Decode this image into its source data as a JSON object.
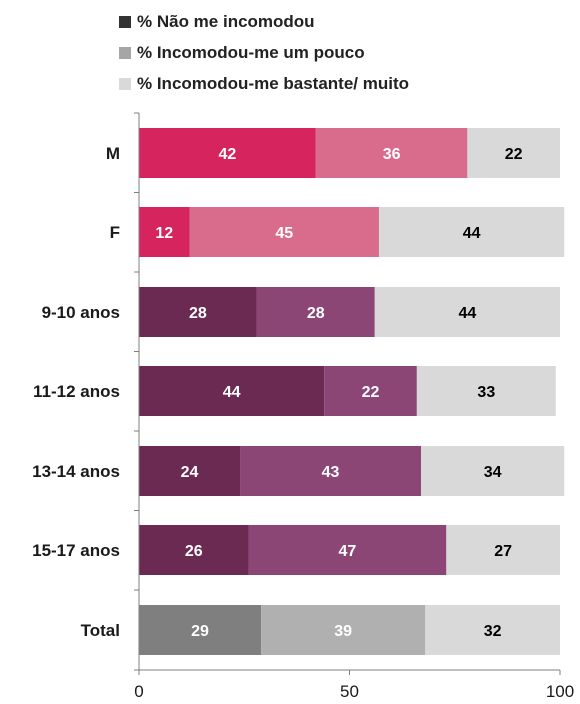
{
  "chart_data": {
    "type": "bar",
    "orientation": "horizontal",
    "stacked": true,
    "categories": [
      "M",
      "F",
      "9-10 anos",
      "11-12 anos",
      "13-14 anos",
      "15-17 anos",
      "Total"
    ],
    "series": [
      {
        "name": "% Não me incomodou",
        "values": [
          42,
          12,
          28,
          44,
          24,
          26,
          29
        ]
      },
      {
        "name": "% Incomodou-me um pouco",
        "values": [
          36,
          45,
          28,
          22,
          43,
          47,
          39
        ]
      },
      {
        "name": "% Incomodou-me bastante/ muito",
        "values": [
          22,
          44,
          44,
          33,
          34,
          27,
          32
        ]
      }
    ],
    "bar_colors": [
      [
        "#d6245f",
        "#d96b8c",
        "#d9d9d9"
      ],
      [
        "#d6245f",
        "#d96b8c",
        "#d9d9d9"
      ],
      [
        "#6b2a51",
        "#8b4676",
        "#d9d9d9"
      ],
      [
        "#6b2a51",
        "#8b4676",
        "#d9d9d9"
      ],
      [
        "#6b2a51",
        "#8b4676",
        "#d9d9d9"
      ],
      [
        "#6b2a51",
        "#8b4676",
        "#d9d9d9"
      ],
      [
        "#7f7f7f",
        "#b0b0b0",
        "#d9d9d9"
      ]
    ],
    "legend_colors": [
      "#333333",
      "#a6a6a6",
      "#d9d9d9"
    ],
    "label_colors": [
      "#ffffff",
      "#ffffff",
      "#000000"
    ],
    "xlim": [
      0,
      100
    ],
    "xticks": [
      0,
      50,
      100
    ],
    "legend_position": "top",
    "grid": false
  }
}
